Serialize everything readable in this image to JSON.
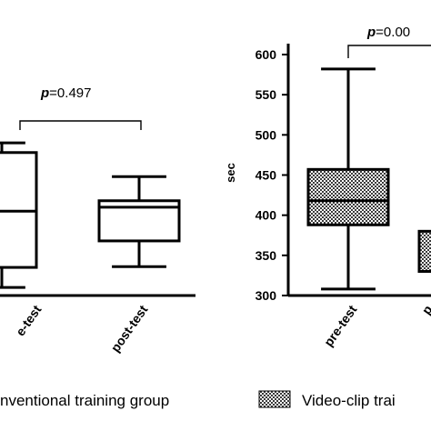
{
  "chart_data": [
    {
      "type": "box",
      "panel": "left",
      "categories": [
        "pre-test",
        "post-test"
      ],
      "visible_category_labels": [
        "e-test",
        "post-test"
      ],
      "ylim": [
        300,
        600
      ],
      "boxes": [
        {
          "category": "pre-test",
          "min": 310,
          "q1": 335,
          "median": 405,
          "q3": 478,
          "max": 490
        },
        {
          "category": "post-test",
          "min": 336,
          "q1": 368,
          "median": 410,
          "q3": 418,
          "max": 448
        }
      ],
      "annotation": {
        "p_symbol": "p",
        "p_value": "=0.497"
      },
      "legend": {
        "label": "nventional training group"
      }
    },
    {
      "type": "box",
      "panel": "right",
      "categories": [
        "pre-test",
        "post-test"
      ],
      "visible_category_labels": [
        "pre-test",
        "p"
      ],
      "ylabel": "sec",
      "ylim": [
        300,
        600
      ],
      "yticks": [
        300,
        350,
        400,
        450,
        500,
        550,
        600
      ],
      "boxes": [
        {
          "category": "pre-test",
          "min": 308,
          "q1": 388,
          "median": 418,
          "q3": 457,
          "max": 582,
          "pattern": "checkered"
        },
        {
          "category": "post-test",
          "q1": 330,
          "q3": 380,
          "pattern": "checkered"
        }
      ],
      "annotation": {
        "p_symbol": "p",
        "p_value": "=0.00"
      },
      "legend": {
        "label": "Video-clip trai"
      }
    }
  ]
}
